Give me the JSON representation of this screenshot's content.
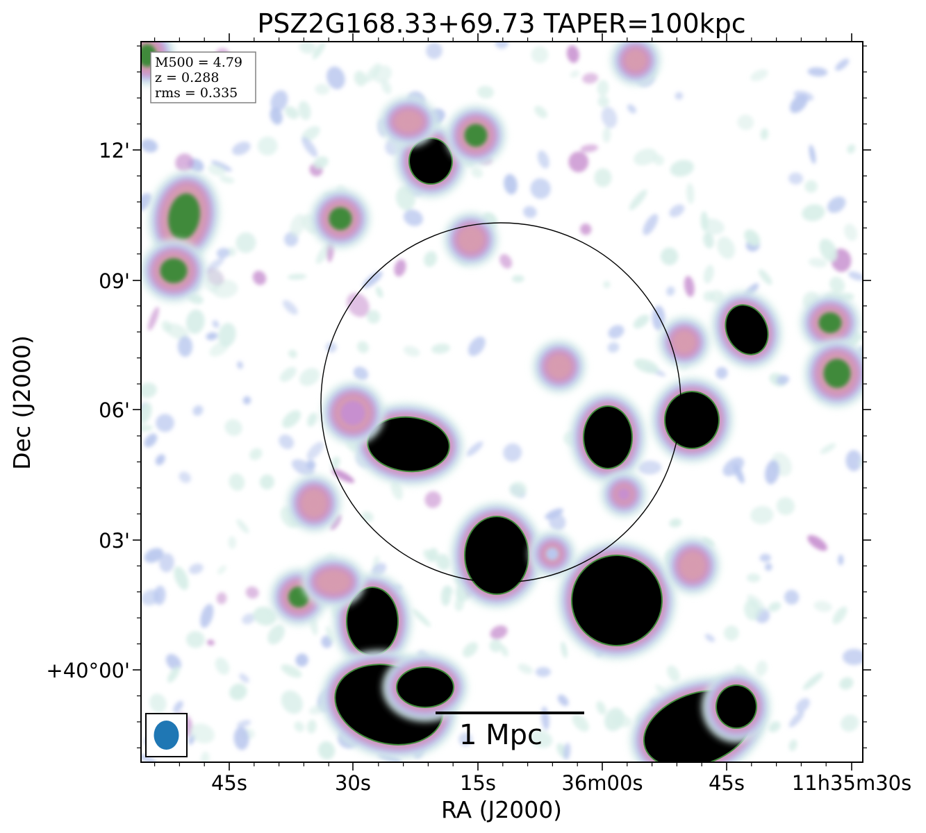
{
  "chart_data": {
    "type": "heatmap",
    "title": "PSZ2G168.33+69.73 TAPER=100kpc",
    "xlabel": "RA (J2000)",
    "ylabel": "Dec (J2000)",
    "x_ticks": [
      "45s",
      "30s",
      "15s",
      "36m00s",
      "45s",
      "11h35m30s"
    ],
    "y_ticks": [
      "12'",
      "09'",
      "06'",
      "03'",
      "+40°00'"
    ],
    "info_box": [
      "M500 = 4.79",
      "z = 0.288",
      "rms = 0.335"
    ],
    "scalebar_label": "1 Mpc",
    "colormap": [
      "#d7eee8",
      "#b9c7ee",
      "#c78fcf",
      "#d79bb0",
      "#3f8a3a",
      "#000000"
    ],
    "circle_color": "#000000",
    "beam_color": "#1f77b4"
  }
}
